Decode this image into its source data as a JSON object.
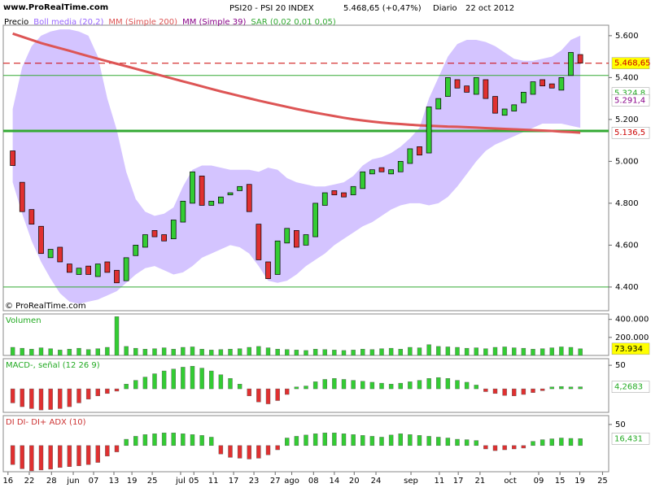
{
  "header": {
    "site": "www.ProRealTime.com",
    "title": "PSI20 - PSI 20 INDEX",
    "last": "5.468,65 (+0,47%)",
    "period": "Diario",
    "date": "22 oct 2012"
  },
  "chart_data": [
    {
      "type": "candlestick",
      "copyright": "© ProRealTime.com",
      "xlim": [
        0,
        128
      ],
      "xticks": [
        {
          "value": 1,
          "label": "16"
        },
        {
          "value": 5.5,
          "label": "22"
        },
        {
          "value": 10.2,
          "label": "28"
        },
        {
          "value": 14.8,
          "label": "jun"
        },
        {
          "value": 19.1,
          "label": "07"
        },
        {
          "value": 23.4,
          "label": "13"
        },
        {
          "value": 27.2,
          "label": "19"
        },
        {
          "value": 31.5,
          "label": "25"
        },
        {
          "value": 37.5,
          "label": "jul"
        },
        {
          "value": 40.3,
          "label": "05"
        },
        {
          "value": 44.4,
          "label": "11"
        },
        {
          "value": 48.7,
          "label": "17"
        },
        {
          "value": 53,
          "label": "23"
        },
        {
          "value": 57.5,
          "label": "27"
        },
        {
          "value": 61,
          "label": "ago"
        },
        {
          "value": 65.6,
          "label": "08"
        },
        {
          "value": 70,
          "label": "14"
        },
        {
          "value": 74.2,
          "label": "20"
        },
        {
          "value": 78.8,
          "label": "24"
        },
        {
          "value": 86.2,
          "label": "sep"
        },
        {
          "value": 92.2,
          "label": "11"
        },
        {
          "value": 96.2,
          "label": "17"
        },
        {
          "value": 100.8,
          "label": "21"
        },
        {
          "value": 107.2,
          "label": "oct"
        },
        {
          "value": 113.2,
          "label": "09"
        },
        {
          "value": 117.7,
          "label": "15"
        },
        {
          "value": 121.9,
          "label": "19"
        },
        {
          "value": 126.7,
          "label": "25"
        }
      ],
      "ylim": [
        4287,
        5650
      ],
      "yticks": [
        {
          "value": 5600,
          "label": "5.600"
        },
        {
          "value": 5400,
          "label": "5.400"
        },
        {
          "value": 5200,
          "label": "5.200"
        },
        {
          "value": 5000,
          "label": "5.000"
        },
        {
          "value": 4800,
          "label": "4.800"
        },
        {
          "value": 4600,
          "label": "4.600"
        },
        {
          "value": 4400,
          "label": "4.400"
        }
      ],
      "x": [
        2,
        4,
        6,
        8,
        10,
        12,
        14,
        16,
        18,
        20,
        22,
        24,
        26,
        28,
        30,
        32,
        34,
        36,
        38,
        40,
        42,
        44,
        46,
        48,
        50,
        52,
        54,
        56,
        58,
        60,
        62,
        64,
        66,
        68,
        70,
        72,
        74,
        76,
        78,
        80,
        82,
        84,
        86,
        88,
        90,
        92,
        94,
        96,
        98,
        100,
        102,
        104,
        106,
        108,
        110,
        112,
        114,
        116,
        118,
        120,
        122
      ],
      "series": [
        {
          "name": "Precio",
          "kind": "candles",
          "color": "#000000",
          "up_color": "#33cc33",
          "down_color": "#e03030",
          "open": [
            5050,
            4900,
            4770,
            4690,
            4540,
            4590,
            4510,
            4460,
            4500,
            4450,
            4520,
            4480,
            4430,
            4550,
            4590,
            4670,
            4650,
            4630,
            4710,
            4800,
            4930,
            4790,
            4800,
            4840,
            4860,
            4890,
            4700,
            4520,
            4460,
            4610,
            4670,
            4600,
            4640,
            4790,
            4860,
            4850,
            4840,
            4870,
            4940,
            4970,
            4940,
            4950,
            4990,
            5070,
            5040,
            5250,
            5310,
            5390,
            5360,
            5320,
            5390,
            5310,
            5220,
            5240,
            5280,
            5320,
            5390,
            5370,
            5340,
            5410,
            5510
          ],
          "close": [
            4980,
            4760,
            4700,
            4560,
            4580,
            4520,
            4470,
            4490,
            4460,
            4510,
            4470,
            4420,
            4540,
            4600,
            4650,
            4640,
            4620,
            4720,
            4810,
            4950,
            4790,
            4810,
            4830,
            4850,
            4880,
            4760,
            4530,
            4440,
            4620,
            4680,
            4590,
            4650,
            4800,
            4850,
            4840,
            4830,
            4880,
            4950,
            4960,
            4950,
            4960,
            5000,
            5060,
            5030,
            5260,
            5300,
            5400,
            5350,
            5330,
            5400,
            5300,
            5230,
            5250,
            5270,
            5330,
            5380,
            5360,
            5350,
            5400,
            5520,
            5469
          ]
        },
        {
          "name": "Boll media (20,2)",
          "kind": "band",
          "color": "#9966ff",
          "fill": "#d4c4ff",
          "upper": [
            5250,
            5450,
            5550,
            5600,
            5620,
            5630,
            5630,
            5620,
            5600,
            5500,
            5300,
            5150,
            4950,
            4820,
            4760,
            4740,
            4750,
            4780,
            4880,
            4960,
            4980,
            4980,
            4970,
            4960,
            4960,
            4960,
            4950,
            4970,
            4960,
            4920,
            4900,
            4890,
            4880,
            4880,
            4890,
            4900,
            4930,
            4980,
            5010,
            5020,
            5040,
            5070,
            5110,
            5160,
            5300,
            5400,
            5500,
            5560,
            5580,
            5580,
            5570,
            5550,
            5520,
            5490,
            5480,
            5480,
            5490,
            5500,
            5530,
            5580,
            5600
          ],
          "lower": [
            4900,
            4750,
            4620,
            4520,
            4440,
            4370,
            4330,
            4320,
            4330,
            4340,
            4360,
            4380,
            4420,
            4460,
            4490,
            4500,
            4480,
            4460,
            4470,
            4500,
            4540,
            4560,
            4580,
            4600,
            4590,
            4560,
            4500,
            4430,
            4420,
            4430,
            4460,
            4500,
            4530,
            4560,
            4600,
            4630,
            4660,
            4690,
            4710,
            4740,
            4770,
            4790,
            4800,
            4800,
            4790,
            4800,
            4830,
            4880,
            4940,
            5000,
            5050,
            5080,
            5100,
            5120,
            5140,
            5160,
            5180,
            5180,
            5180,
            5170,
            5160
          ]
        },
        {
          "name": "MM (Simple 200)",
          "kind": "line",
          "color": "#dd5555",
          "values": [
            5610,
            5595,
            5580,
            5565,
            5552,
            5540,
            5528,
            5515,
            5502,
            5490,
            5478,
            5466,
            5454,
            5442,
            5430,
            5418,
            5406,
            5394,
            5382,
            5370,
            5358,
            5346,
            5334,
            5323,
            5312,
            5301,
            5290,
            5280,
            5270,
            5260,
            5250,
            5241,
            5232,
            5224,
            5216,
            5208,
            5201,
            5195,
            5190,
            5185,
            5181,
            5178,
            5175,
            5172,
            5170,
            5168,
            5166,
            5165,
            5163,
            5161,
            5159,
            5157,
            5155,
            5153,
            5151,
            5149,
            5147,
            5145,
            5142,
            5140,
            5137
          ]
        },
        {
          "name": "MM (Simple 39)",
          "kind": "line",
          "color": "#880088"
        },
        {
          "name": "SAR (0,02 0,01 0,05)",
          "kind": "dots",
          "color": "#33aa33"
        }
      ],
      "hlines": [
        5410,
        5145,
        4400
      ],
      "hline_color": "#33aa33",
      "last_line": 5468.65,
      "last_color": "#cc0000",
      "value_labels": [
        {
          "value": 5468.65,
          "label": "5.468,65",
          "color": "#cc0000",
          "background": "#ffff00"
        },
        {
          "value": 5324.8,
          "label": "5.324,8",
          "color": "#22aa22",
          "background": "#ffffff"
        },
        {
          "value": 5291.4,
          "label": "5.291,4",
          "color": "#880088",
          "background": "#ffffff"
        },
        {
          "value": 5136.5,
          "label": "5.136,5",
          "color": "#cc0000",
          "background": "#ffffff"
        }
      ]
    },
    {
      "type": "bar",
      "title": "Volumen",
      "title_color": "#22aa22",
      "pos_color": "#33cc33",
      "neg_color": "#e03030",
      "ylim": [
        0,
        460000
      ],
      "yticks": [
        {
          "value": 400000,
          "label": "400.000"
        },
        {
          "value": 200000,
          "label": "200.000"
        }
      ],
      "values": [
        90000,
        80000,
        70000,
        85000,
        75000,
        60000,
        70000,
        80000,
        65000,
        75000,
        90000,
        430000,
        100000,
        80000,
        70000,
        75000,
        85000,
        70000,
        90000,
        95000,
        70000,
        60000,
        65000,
        70000,
        75000,
        90000,
        100000,
        85000,
        70000,
        65000,
        60000,
        55000,
        70000,
        65000,
        60000,
        55000,
        60000,
        70000,
        65000,
        75000,
        80000,
        70000,
        90000,
        85000,
        120000,
        100000,
        95000,
        90000,
        80000,
        85000,
        75000,
        90000,
        95000,
        85000,
        80000,
        70000,
        75000,
        85000,
        95000,
        90000,
        73934
      ],
      "value_labels": [
        {
          "value": 73934,
          "label": "73.934",
          "color": "#000000",
          "background": "#ffff00"
        }
      ]
    },
    {
      "type": "bar",
      "title": "MACD-, señal (12 26 9)",
      "title_color": "#22aa22",
      "pos_color": "#33cc33",
      "neg_color": "#e03030",
      "ylim": [
        -50,
        64
      ],
      "yticks": [
        50
      ],
      "values": [
        -30,
        -38,
        -42,
        -45,
        -44,
        -42,
        -38,
        -30,
        -22,
        -15,
        -10,
        -5,
        10,
        18,
        25,
        32,
        38,
        42,
        46,
        48,
        44,
        38,
        30,
        22,
        10,
        -15,
        -28,
        -32,
        -25,
        -12,
        4,
        6,
        15,
        20,
        22,
        20,
        18,
        16,
        14,
        12,
        10,
        12,
        15,
        18,
        22,
        24,
        22,
        18,
        14,
        8,
        -6,
        -10,
        -14,
        -15,
        -12,
        -8,
        -4,
        4,
        5,
        4,
        4.2683
      ],
      "value_labels": [
        {
          "value": 4.2683,
          "label": "4,2683",
          "color": "#22aa22",
          "background": "#ffffff"
        }
      ]
    },
    {
      "type": "bar",
      "title": "DI DI- DI+ ADX (10)",
      "title_color": "#cc3333",
      "pos_color": "#33cc33",
      "neg_color": "#e03030",
      "ylim": [
        -62,
        71
      ],
      "yticks": [
        50
      ],
      "values": [
        -45,
        -55,
        -60,
        -58,
        -56,
        -52,
        -50,
        -48,
        -45,
        -40,
        -25,
        -15,
        15,
        22,
        26,
        28,
        30,
        30,
        28,
        26,
        24,
        20,
        -20,
        -28,
        -30,
        -32,
        -30,
        -22,
        -10,
        18,
        22,
        25,
        28,
        30,
        30,
        28,
        26,
        24,
        22,
        20,
        25,
        28,
        26,
        24,
        22,
        20,
        18,
        15,
        14,
        12,
        -8,
        -12,
        -10,
        -8,
        -6,
        10,
        14,
        16,
        18,
        17,
        16.431
      ],
      "value_labels": [
        {
          "value": 16.431,
          "label": "16,431",
          "color": "#22aa22",
          "background": "#ffffff"
        }
      ]
    }
  ]
}
